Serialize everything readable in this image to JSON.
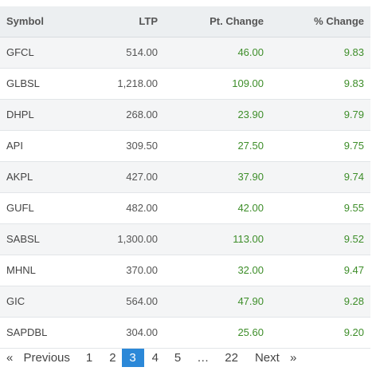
{
  "table": {
    "headers": {
      "symbol": "Symbol",
      "ltp": "LTP",
      "pt_change": "Pt. Change",
      "pct_change": "% Change"
    },
    "rows": [
      {
        "symbol": "GFCL",
        "ltp": "514.00",
        "pt_change": "46.00",
        "pct_change": "9.83"
      },
      {
        "symbol": "GLBSL",
        "ltp": "1,218.00",
        "pt_change": "109.00",
        "pct_change": "9.83"
      },
      {
        "symbol": "DHPL",
        "ltp": "268.00",
        "pt_change": "23.90",
        "pct_change": "9.79"
      },
      {
        "symbol": "API",
        "ltp": "309.50",
        "pt_change": "27.50",
        "pct_change": "9.75"
      },
      {
        "symbol": "AKPL",
        "ltp": "427.00",
        "pt_change": "37.90",
        "pct_change": "9.74"
      },
      {
        "symbol": "GUFL",
        "ltp": "482.00",
        "pt_change": "42.00",
        "pct_change": "9.55"
      },
      {
        "symbol": "SABSL",
        "ltp": "1,300.00",
        "pt_change": "113.00",
        "pct_change": "9.52"
      },
      {
        "symbol": "MHNL",
        "ltp": "370.00",
        "pt_change": "32.00",
        "pct_change": "9.47"
      },
      {
        "symbol": "GIC",
        "ltp": "564.00",
        "pt_change": "47.90",
        "pct_change": "9.28"
      },
      {
        "symbol": "SAPDBL",
        "ltp": "304.00",
        "pt_change": "25.60",
        "pct_change": "9.20"
      }
    ]
  },
  "pagination": {
    "prev_icon": "«",
    "prev_label": "Previous",
    "pages": [
      "1",
      "2",
      "3",
      "4",
      "5"
    ],
    "current_page": "3",
    "ellipsis": "…",
    "last_page": "22",
    "next_label": "Next",
    "next_icon": "»"
  },
  "colors": {
    "header_bg": "#eceff1",
    "row_alt_bg": "#f4f5f6",
    "change_positive": "#3e8e2a",
    "active_page_bg": "#2b88d8"
  }
}
